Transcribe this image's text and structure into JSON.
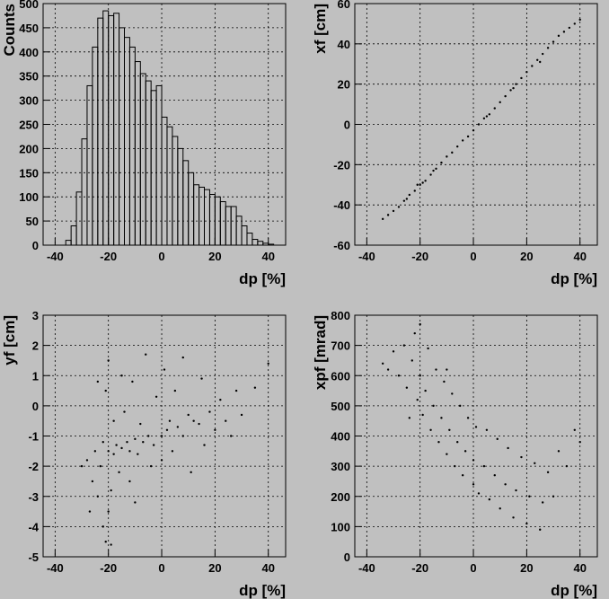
{
  "chart_data": [
    {
      "type": "histogram",
      "x_label": "dp [%]",
      "y_label": "Counts",
      "bins": [
        -36,
        -34,
        -32,
        -30,
        -28,
        -26,
        -24,
        -22,
        -20,
        -18,
        -16,
        -14,
        -12,
        -10,
        -8,
        -6,
        -4,
        -2,
        0,
        2,
        4,
        6,
        8,
        10,
        12,
        14,
        16,
        18,
        20,
        22,
        24,
        26,
        28,
        30,
        32,
        34,
        36,
        38,
        40,
        42
      ],
      "values": [
        10,
        40,
        110,
        220,
        330,
        410,
        470,
        485,
        475,
        480,
        450,
        430,
        410,
        380,
        355,
        340,
        320,
        330,
        265,
        245,
        225,
        200,
        175,
        150,
        125,
        120,
        115,
        105,
        100,
        90,
        80,
        80,
        60,
        40,
        25,
        12,
        8,
        4,
        2
      ],
      "color": "#000000",
      "xlim": [
        -44.5,
        46.5
      ],
      "xticks": [
        -40,
        -20,
        0,
        20,
        40
      ],
      "ylim": [
        0,
        500
      ],
      "yticks": [
        0,
        50,
        100,
        150,
        200,
        250,
        300,
        350,
        400,
        450,
        500
      ],
      "grid": true
    },
    {
      "type": "scatter",
      "x_label": "dp [%]",
      "y_label": "xf [cm]",
      "x": [
        -34,
        -32,
        -30,
        -28,
        -26,
        -24,
        -22,
        -20,
        -18,
        -16,
        -14,
        -12,
        -10,
        -8,
        -6,
        -4,
        -2,
        0,
        2,
        4,
        6,
        8,
        10,
        12,
        14,
        16,
        18,
        20,
        22,
        24,
        26,
        28,
        30,
        32,
        34,
        36,
        38,
        40,
        -25,
        -21,
        -19,
        -15,
        5,
        15,
        25
      ],
      "values": [
        -47,
        -45,
        -43,
        -41,
        -38,
        -35,
        -33,
        -30,
        -28,
        -25,
        -22,
        -19,
        -16,
        -14,
        -11,
        -8,
        -6,
        -3,
        0,
        3,
        5,
        8,
        11,
        14,
        17,
        20,
        23,
        26,
        29,
        32,
        35,
        38,
        41,
        44,
        46,
        48,
        50,
        52,
        -37,
        -30,
        -29,
        -23,
        4,
        18,
        31
      ],
      "color": "#000000",
      "xlim": [
        -44.5,
        46.5
      ],
      "xticks": [
        -40,
        -20,
        0,
        20,
        40
      ],
      "ylim": [
        -60,
        60
      ],
      "yticks": [
        -60,
        -40,
        -20,
        0,
        20,
        40,
        60
      ],
      "grid": true
    },
    {
      "type": "scatter",
      "x_label": "dp [%]",
      "y_label": "yf [cm]",
      "x": [
        -30,
        -28,
        -26,
        -25,
        -24,
        -23,
        -22,
        -22,
        -21,
        -21,
        -20,
        -20,
        -20,
        -19,
        -18,
        -18,
        -17,
        -16,
        -15,
        -15,
        -14,
        -13,
        -12,
        -12,
        -11,
        -10,
        -10,
        -9,
        -8,
        -7,
        -6,
        -5,
        -4,
        -3,
        -2,
        0,
        0,
        1,
        2,
        3,
        4,
        5,
        6,
        8,
        8,
        10,
        11,
        12,
        14,
        15,
        16,
        18,
        20,
        22,
        24,
        26,
        28,
        30,
        35,
        40,
        -27,
        -24,
        -19
      ],
      "values": [
        -2,
        -1.8,
        -2.5,
        -1.5,
        -3,
        -2,
        -4,
        -1.2,
        -4.5,
        0.5,
        -1.5,
        1.5,
        -3.5,
        -2.8,
        -1.6,
        -0.5,
        -1.3,
        -2.2,
        -1.4,
        1,
        -0.2,
        -1.2,
        -2.5,
        -1.5,
        0.8,
        -1.1,
        -3.2,
        -1.6,
        -0.6,
        -1.2,
        1.7,
        -1,
        -2,
        -1.3,
        0.3,
        -1,
        -1.8,
        1.2,
        -0.8,
        -0.5,
        -1.5,
        0.5,
        -0.7,
        -1,
        1.6,
        -0.3,
        -2.2,
        -0.5,
        -0.6,
        0.9,
        -1.3,
        -0.2,
        -0.8,
        0.2,
        -0.5,
        -1,
        0.5,
        -0.3,
        0.6,
        1.4,
        -3.5,
        0.8,
        -4.6
      ],
      "color": "#000000",
      "xlim": [
        -44.5,
        46.5
      ],
      "xticks": [
        -40,
        -20,
        0,
        20,
        40
      ],
      "ylim": [
        -5,
        3
      ],
      "yticks": [
        -5,
        -4,
        -3,
        -2,
        -1,
        0,
        1,
        2,
        3
      ],
      "grid": true
    },
    {
      "type": "scatter",
      "x_label": "dp [%]",
      "y_label": "xpf [mrad]",
      "x": [
        -34,
        -32,
        -30,
        -28,
        -26,
        -25,
        -23,
        -22,
        -21,
        -20,
        -20,
        -19,
        -18,
        -17,
        -16,
        -15,
        -14,
        -13,
        -12,
        -11,
        -10,
        -9,
        -8,
        -7,
        -6,
        -5,
        -4,
        -3,
        -2,
        0,
        0,
        1,
        2,
        4,
        5,
        6,
        8,
        9,
        10,
        12,
        13,
        15,
        16,
        18,
        20,
        21,
        23,
        25,
        26,
        28,
        30,
        32,
        35,
        38,
        40,
        -24,
        -10
      ],
      "values": [
        640,
        620,
        680,
        600,
        700,
        560,
        650,
        740,
        520,
        600,
        770,
        470,
        550,
        690,
        420,
        500,
        620,
        380,
        460,
        580,
        340,
        420,
        540,
        300,
        380,
        500,
        270,
        350,
        460,
        240,
        320,
        430,
        210,
        300,
        420,
        190,
        270,
        390,
        160,
        240,
        360,
        130,
        220,
        330,
        110,
        200,
        310,
        90,
        180,
        280,
        200,
        350,
        300,
        420,
        380,
        460,
        620
      ],
      "color": "#000000",
      "xlim": [
        -44.5,
        46.5
      ],
      "xticks": [
        -40,
        -20,
        0,
        20,
        40
      ],
      "ylim": [
        0,
        800
      ],
      "yticks": [
        0,
        100,
        200,
        300,
        400,
        500,
        600,
        700,
        800
      ],
      "grid": true
    }
  ]
}
